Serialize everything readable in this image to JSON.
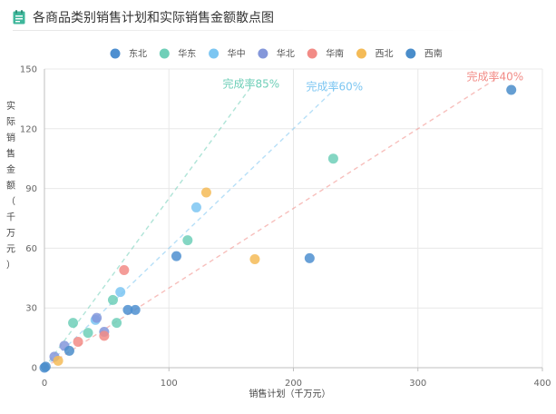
{
  "title": "各商品类别销售计划和实际销售金额散点图",
  "icon": "document-chart-icon",
  "colors": {
    "东北": "#4e8fd0",
    "华东": "#6fcfb8",
    "华中": "#7cc6f2",
    "华北": "#8497da",
    "华南": "#f28b86",
    "西北": "#f4bb57",
    "西南": "#4a8dca"
  },
  "chart_data": {
    "type": "scatter",
    "title": "各商品类别销售计划和实际销售金额散点图",
    "xlabel": "销售计划（千万元）",
    "ylabel": "实际销售金额（千万元）",
    "xlim": [
      0,
      400
    ],
    "ylim": [
      0,
      150
    ],
    "xticks": [
      0,
      100,
      200,
      300,
      400
    ],
    "yticks": [
      0,
      30,
      60,
      90,
      120,
      150
    ],
    "legend_position": "top",
    "grid": true,
    "series": [
      {
        "name": "东北",
        "points": [
          [
            106,
            56
          ],
          [
            67,
            29
          ],
          [
            73,
            29
          ],
          [
            213,
            55
          ],
          [
            0,
            0
          ]
        ]
      },
      {
        "name": "华东",
        "points": [
          [
            232,
            105
          ],
          [
            115,
            64
          ],
          [
            55,
            34
          ],
          [
            23,
            22.5
          ],
          [
            35,
            17.5
          ],
          [
            58,
            22.5
          ]
        ]
      },
      {
        "name": "华中",
        "points": [
          [
            122,
            80.5
          ],
          [
            61,
            38
          ],
          [
            41,
            24
          ]
        ]
      },
      {
        "name": "华北",
        "points": [
          [
            42,
            25
          ],
          [
            16,
            11
          ],
          [
            8,
            5.5
          ],
          [
            48,
            18
          ]
        ]
      },
      {
        "name": "华南",
        "points": [
          [
            64,
            49
          ],
          [
            48,
            16
          ],
          [
            27,
            13
          ]
        ]
      },
      {
        "name": "西北",
        "points": [
          [
            130,
            88
          ],
          [
            169,
            54.5
          ],
          [
            11,
            3.5
          ]
        ]
      },
      {
        "name": "西南",
        "points": [
          [
            375,
            139.5
          ],
          [
            20,
            8.5
          ],
          [
            1,
            0.5
          ]
        ]
      }
    ],
    "reference_lines": [
      {
        "label": "完成率85%",
        "slope": 0.85,
        "x_end": 166,
        "color": "#6fcfb8"
      },
      {
        "label": "完成率60%",
        "slope": 0.6,
        "x_end": 233,
        "color": "#7cc6f2"
      },
      {
        "label": "完成率40%",
        "slope": 0.4,
        "x_end": 362,
        "color": "#f28b86"
      }
    ]
  }
}
